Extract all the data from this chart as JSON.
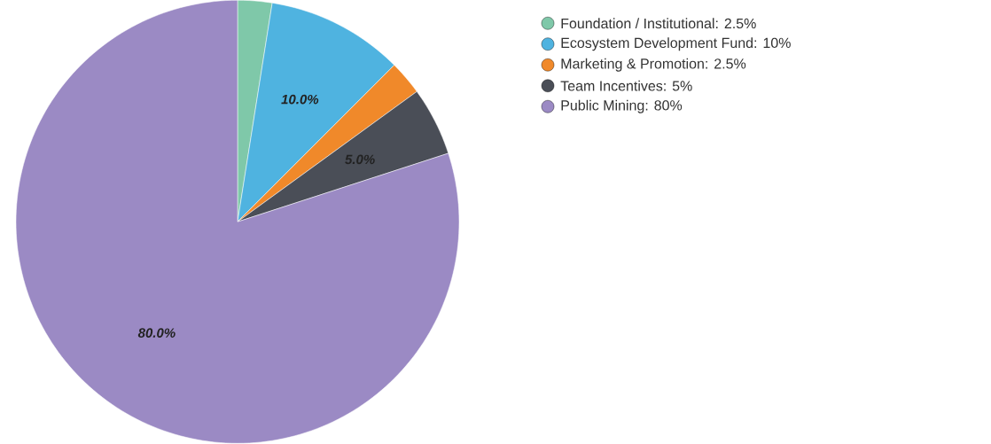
{
  "chart_data": {
    "type": "pie",
    "categories": [
      "Foundation / Institutional: 2.5%",
      "Ecosystem Development Fund: 10%",
      "Marketing & Promotion: 2.5%",
      "Team Incentives: 5%",
      "Public Mining: 80%"
    ],
    "values": [
      2.5,
      10,
      2.5,
      5,
      80
    ],
    "colors": [
      "#7fc8a9",
      "#4fb3e0",
      "#f0892a",
      "#4a4e57",
      "#9b8ac4"
    ],
    "value_labels": [
      null,
      "10.0%",
      null,
      "5.0%",
      "80.0%"
    ],
    "legend": "top right"
  }
}
